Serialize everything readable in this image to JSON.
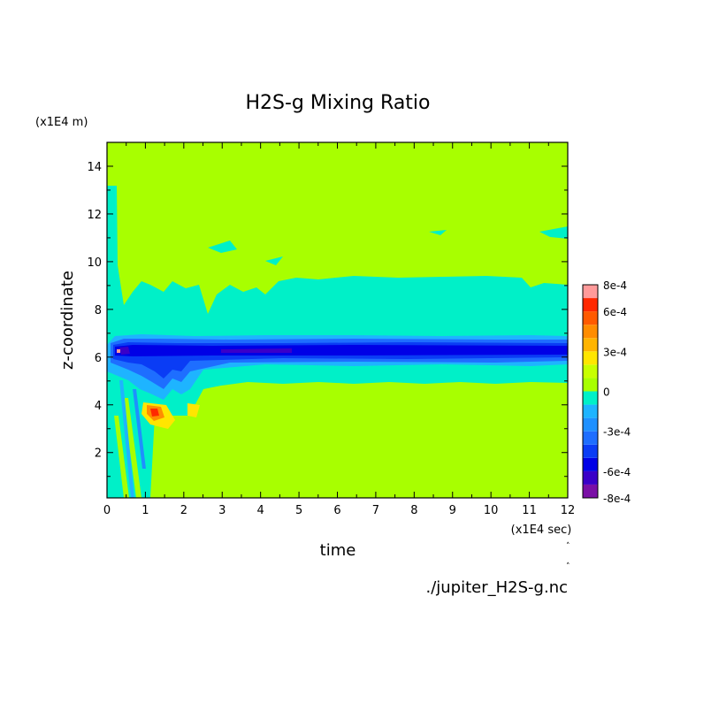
{
  "chart_data": {
    "type": "heatmap",
    "title": "H2S-g Mixing Ratio",
    "xlabel": "time",
    "ylabel": "z-coordinate",
    "x_unit": "(x1E4 sec)",
    "y_unit": "(x1E4 m)",
    "source": "./jupiter_H2S-g.nc",
    "xlim": [
      0,
      12
    ],
    "ylim": [
      0.1,
      15
    ],
    "x_ticks": [
      "0",
      "1",
      "2",
      "3",
      "4",
      "5",
      "6",
      "7",
      "8",
      "9",
      "10",
      "11",
      "12"
    ],
    "y_ticks": [
      "2",
      "4",
      "6",
      "8",
      "10",
      "12",
      "14"
    ],
    "colorbar": {
      "labels": [
        "8e-4",
        "6e-4",
        "3e-4",
        "0",
        "-3e-4",
        "-6e-4",
        "-8e-4"
      ],
      "label_values": [
        0.0008,
        0.0006,
        0.0003,
        0,
        -0.0003,
        -0.0006,
        -0.0008
      ],
      "levels": [
        -0.0008,
        -0.0007,
        -0.0006,
        -0.0005,
        -0.0004,
        -0.0003,
        -0.0002,
        -0.0001,
        0,
        0.0001,
        0.0002,
        0.0003,
        0.0004,
        0.0005,
        0.0006,
        0.0007,
        0.0008
      ],
      "colors": [
        "#7a0fa6",
        "#3a00c8",
        "#0000e6",
        "#0a3cf5",
        "#1e6eff",
        "#1e90ff",
        "#1eb4ff",
        "#00f0c8",
        "#a8ff00",
        "#c8ff00",
        "#ffe600",
        "#ffb400",
        "#ff8c00",
        "#ff5a00",
        "#ff2800",
        "#ff9a9a"
      ]
    },
    "field_summary": {
      "background": 0,
      "upper_band": {
        "y": [
          4.9,
          9.0
        ],
        "value": -0.0001
      },
      "core_band": {
        "y": [
          5.6,
          6.8
        ],
        "value": -0.0006,
        "center_y": 6.2
      },
      "plume": {
        "x": [
          1.0,
          1.6
        ],
        "y": [
          3.2,
          4.0
        ],
        "value": 0.0005
      }
    }
  }
}
